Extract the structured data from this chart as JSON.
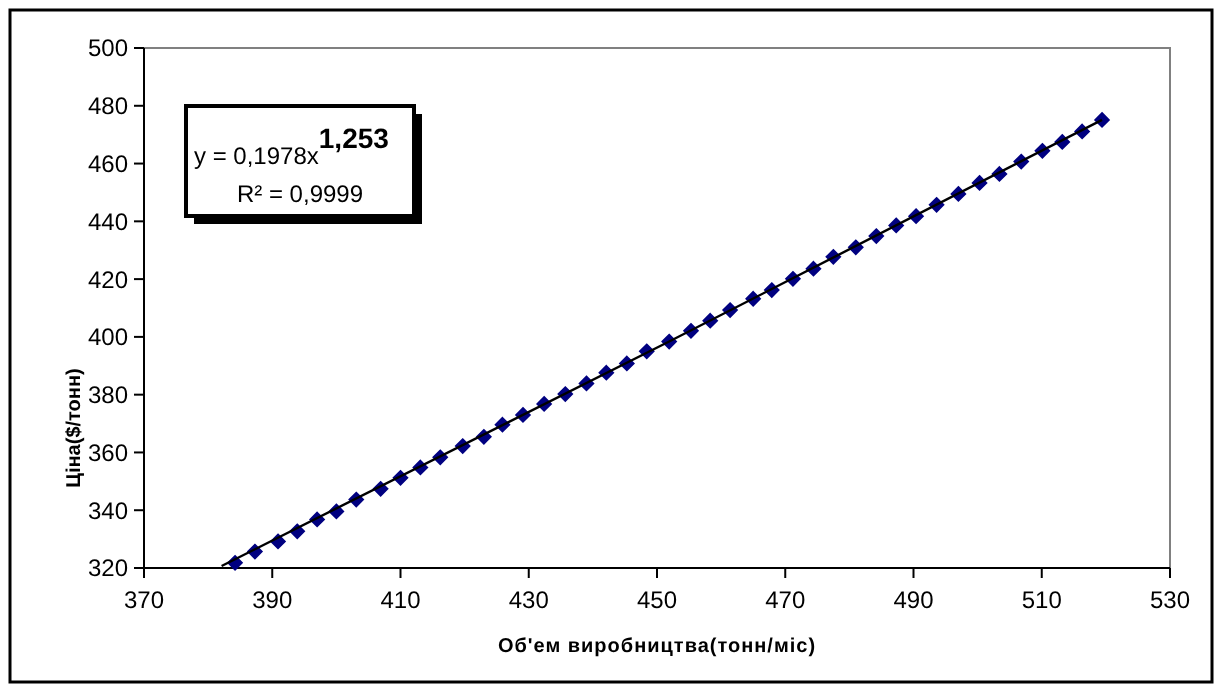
{
  "chart_data": {
    "type": "scatter",
    "xlabel": "Об'ем виробництва(тонн/міс)",
    "ylabel": "Ціна($/тонн)",
    "xlim": [
      370,
      530
    ],
    "xticks": [
      370,
      390,
      410,
      430,
      450,
      470,
      490,
      510,
      530
    ],
    "ylim": [
      320,
      500
    ],
    "yticks": [
      320,
      340,
      360,
      380,
      400,
      420,
      440,
      460,
      480,
      500
    ],
    "marker": "diamond",
    "annotations": [
      "y = 0,1978x$^{1,253}$",
      "R² = 0,9999"
    ],
    "series": [
      {
        "color": "#000080",
        "x": [
          384.2,
          387.3,
          390.9,
          393.9,
          397.0,
          400.0,
          403.1,
          406.9,
          410.0,
          413.1,
          416.2,
          419.7,
          423.0,
          425.9,
          429.1,
          432.4,
          435.7,
          439.0,
          442.1,
          445.3,
          448.4,
          451.9,
          455.3,
          458.3,
          461.4,
          465.0,
          467.9,
          471.2,
          474.4,
          477.5,
          481.0,
          484.2,
          487.3,
          490.4,
          493.6,
          497.0,
          500.3,
          503.4,
          506.8,
          510.1,
          513.2,
          516.3,
          519.4
        ],
        "values": [
          321.8,
          325.7,
          329.2,
          332.7,
          336.8,
          339.6,
          343.7,
          347.4,
          351.2,
          354.8,
          358.3,
          362.2,
          365.4,
          369.6,
          373.0,
          376.8,
          380.2,
          383.9,
          387.6,
          390.8,
          395.0,
          398.4,
          402.1,
          405.6,
          409.3,
          413.2,
          416.2,
          420.1,
          423.6,
          427.7,
          431.0,
          434.9,
          438.6,
          441.8,
          445.7,
          449.5,
          453.3,
          456.4,
          460.7,
          464.4,
          467.5,
          471.1,
          475.1
        ]
      },
      {
        "type": "line",
        "color": "#000000",
        "marker": "none",
        "x": [
          382.1,
          451.9,
          519.4
        ],
        "values": [
          320.7,
          398.4,
          475.1
        ]
      }
    ]
  }
}
